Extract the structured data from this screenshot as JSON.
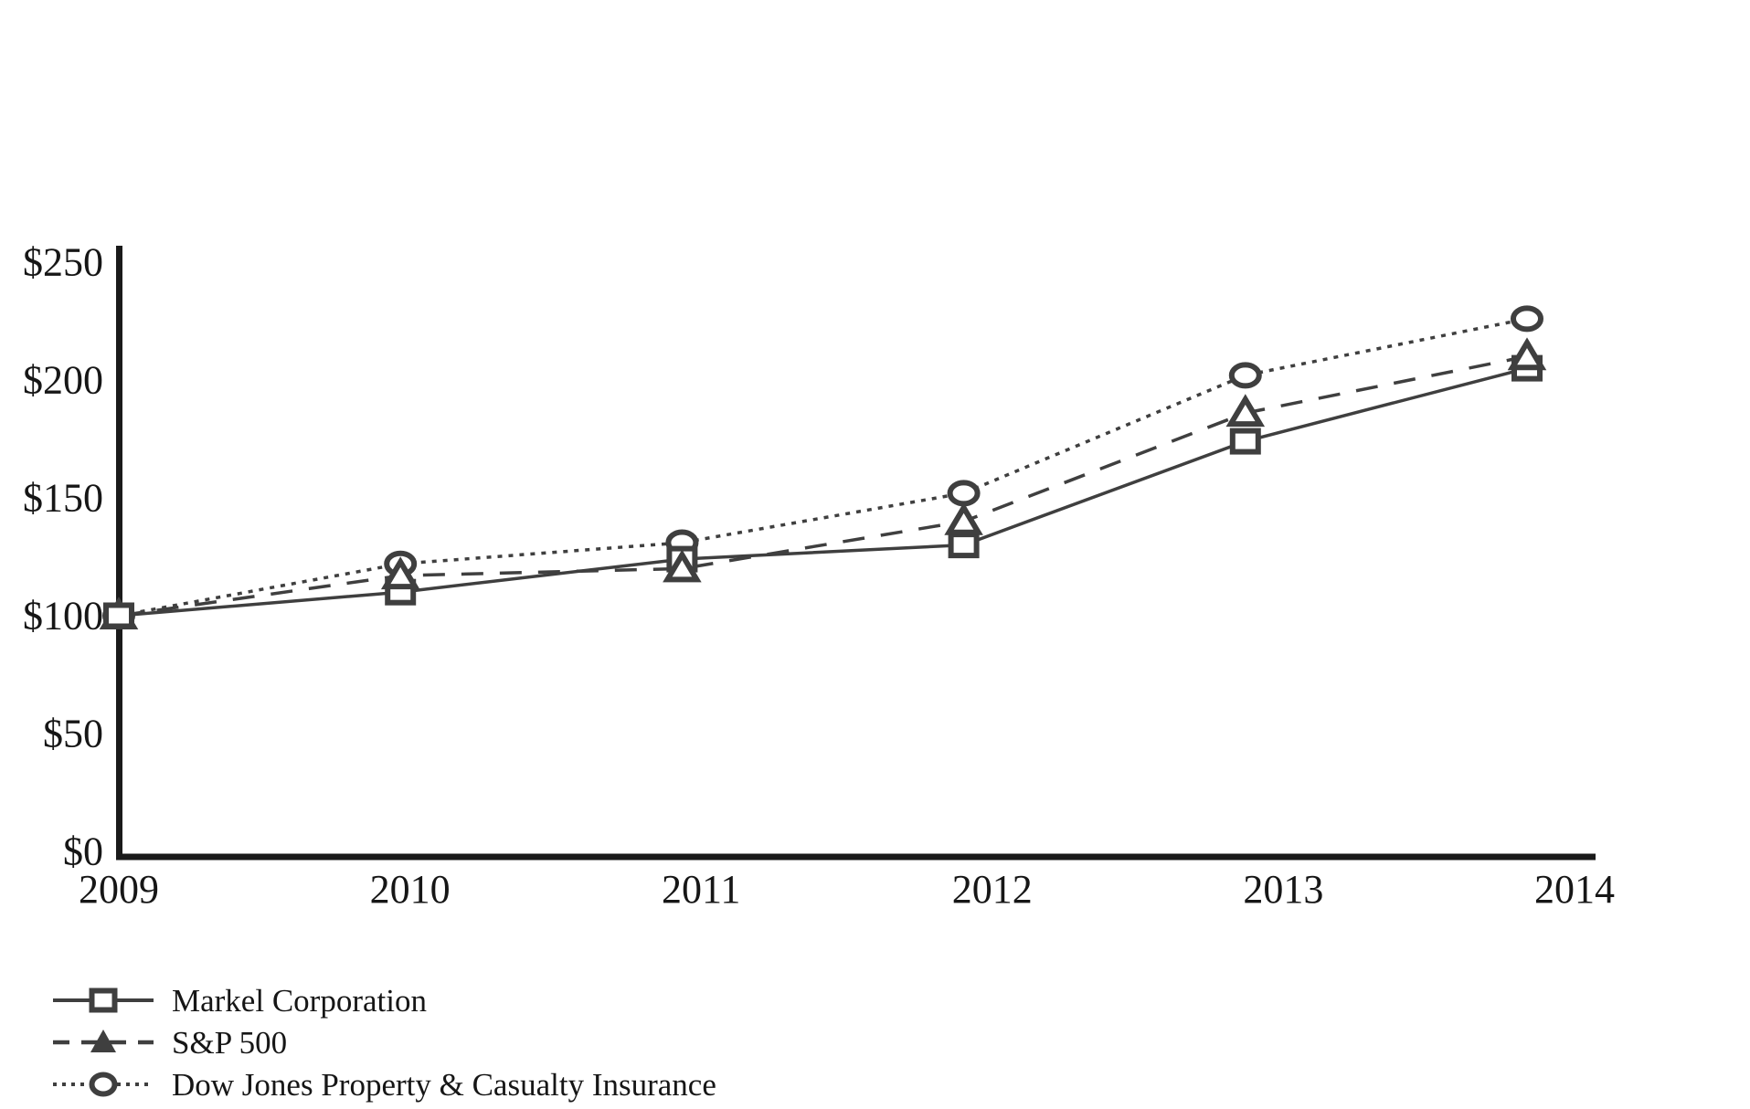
{
  "chart_data": {
    "type": "line",
    "title": "",
    "xlabel": "",
    "ylabel": "",
    "categories": [
      "2009",
      "2010",
      "2011",
      "2012",
      "2013",
      "2014"
    ],
    "ylim": [
      0,
      250
    ],
    "y_ticks": [
      {
        "label": "$0",
        "value": 0
      },
      {
        "label": "$50",
        "value": 50
      },
      {
        "label": "$100",
        "value": 100
      },
      {
        "label": "$150",
        "value": 150
      },
      {
        "label": "$200",
        "value": 200
      },
      {
        "label": "$250",
        "value": 250
      }
    ],
    "grid": false,
    "legend_position": "bottom-left",
    "series": [
      {
        "name": "Markel Corporation",
        "marker": "square",
        "line_style": "solid",
        "values": [
          100,
          110,
          124,
          130,
          174,
          205
        ]
      },
      {
        "name": "S&P 500",
        "marker": "triangle",
        "line_style": "dashed",
        "values": [
          100,
          117,
          120,
          140,
          186,
          210
        ]
      },
      {
        "name": "Dow Jones Property & Casualty Insurance",
        "marker": "circle",
        "line_style": "dotted",
        "values": [
          100,
          122,
          131,
          152,
          202,
          226
        ]
      }
    ],
    "colors": {
      "line": "#3f3f3f",
      "marker_stroke": "#3f3f3f",
      "marker_fill": "#ffffff",
      "axis": "#1a1a1a",
      "text": "#161616",
      "background": "#ffffff"
    }
  }
}
